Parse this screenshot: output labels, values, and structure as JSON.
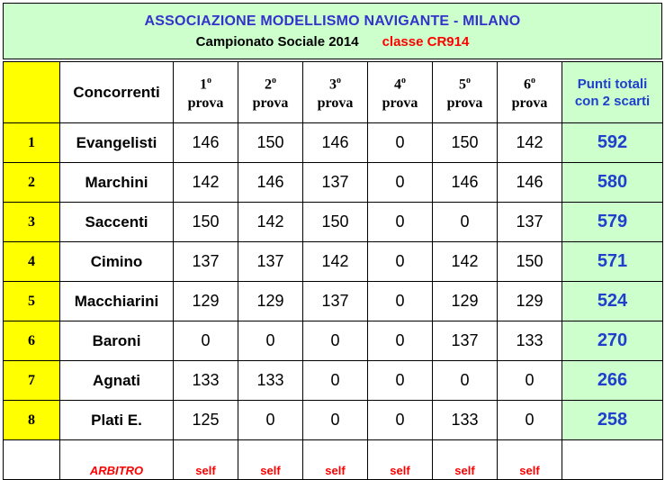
{
  "header": {
    "title": "ASSOCIAZIONE MODELLISMO NAVIGANTE - MILANO",
    "subtitle": "Campionato Sociale 2014",
    "class_label": "classe CR914"
  },
  "table": {
    "columns": {
      "name": "Concorrenti",
      "prova_label": "prova",
      "prova_numbers": [
        "1",
        "2",
        "3",
        "4",
        "5",
        "6"
      ],
      "ordinal_mark": "o",
      "total_line1": "Punti totali",
      "total_line2": "con 2 scarti"
    },
    "rows": [
      {
        "rank": "1",
        "name": "Evangelisti",
        "scores": [
          "146",
          "150",
          "146",
          "0",
          "150",
          "142"
        ],
        "total": "592"
      },
      {
        "rank": "2",
        "name": "Marchini",
        "scores": [
          "142",
          "146",
          "137",
          "0",
          "146",
          "146"
        ],
        "total": "580"
      },
      {
        "rank": "3",
        "name": "Saccenti",
        "scores": [
          "150",
          "142",
          "150",
          "0",
          "0",
          "137"
        ],
        "total": "579"
      },
      {
        "rank": "4",
        "name": "Cimino",
        "scores": [
          "137",
          "137",
          "142",
          "0",
          "142",
          "150"
        ],
        "total": "571"
      },
      {
        "rank": "5",
        "name": "Macchiarini",
        "scores": [
          "129",
          "129",
          "137",
          "0",
          "129",
          "129"
        ],
        "total": "524"
      },
      {
        "rank": "6",
        "name": "Baroni",
        "scores": [
          "0",
          "0",
          "0",
          "0",
          "137",
          "133"
        ],
        "total": "270"
      },
      {
        "rank": "7",
        "name": "Agnati",
        "scores": [
          "133",
          "133",
          "0",
          "0",
          "0",
          "0"
        ],
        "total": "266"
      },
      {
        "rank": "8",
        "name": "Plati E.",
        "scores": [
          "125",
          "0",
          "0",
          "0",
          "133",
          "0"
        ],
        "total": "258"
      }
    ],
    "footer": {
      "label": "ARBITRO",
      "values": [
        "self",
        "self",
        "self",
        "self",
        "self",
        "self"
      ]
    }
  },
  "colors": {
    "title_bg": "#ccffcc",
    "rank_bg": "#ffff00",
    "total_bg": "#ccffcc",
    "title_blue": "#3333cc",
    "total_blue": "#1f3fcc",
    "accent_red": "#ff0000"
  }
}
